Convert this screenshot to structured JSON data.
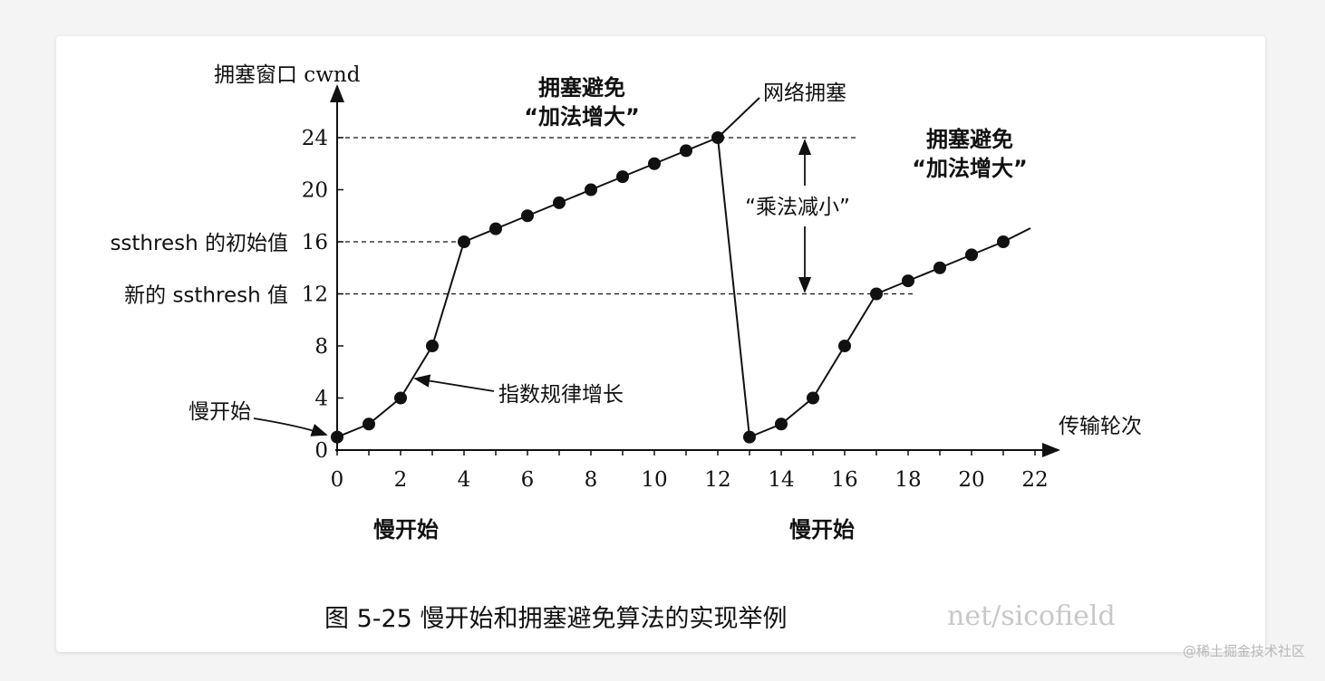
{
  "chart_data": {
    "type": "line",
    "title": "",
    "caption": "图 5-25    慢开始和拥塞避免算法的实现举例",
    "caption_watermark": "net/sicofield",
    "xlabel": "传输轮次",
    "ylabel": "拥塞窗口 cwnd",
    "xlim": [
      0,
      22
    ],
    "ylim": [
      0,
      24
    ],
    "x_ticks": [
      "0",
      "2",
      "4",
      "6",
      "8",
      "10",
      "12",
      "14",
      "16",
      "18",
      "20",
      "22"
    ],
    "y_ticks": [
      "0",
      "4",
      "8",
      "12",
      "16",
      "20",
      "24"
    ],
    "grid": false,
    "segments": [
      {
        "x": [
          0,
          1,
          2,
          3,
          4,
          5,
          6,
          7,
          8,
          9,
          10,
          11,
          12
        ],
        "y": [
          1,
          2,
          4,
          8,
          16,
          17,
          18,
          19,
          20,
          21,
          22,
          23,
          24
        ]
      },
      {
        "x": [
          13,
          14,
          15,
          16,
          17,
          18,
          19,
          20,
          21
        ],
        "y": [
          1,
          2,
          4,
          8,
          12,
          13,
          14,
          15,
          16
        ]
      }
    ],
    "threshold_lines": [
      {
        "y": 24
      },
      {
        "y": 16,
        "label": "ssthresh 的初始值"
      },
      {
        "y": 12,
        "label": "新的 ssthresh 值"
      }
    ],
    "annotations": {
      "slow_start_left": "慢开始",
      "exponential": "指数规律增长",
      "ca1_line1": "拥塞避免",
      "ca1_line2": "“加法增大”",
      "congestion": "网络拥塞",
      "ca2_line1": "拥塞避免",
      "ca2_line2": "“加法增大”",
      "multiplicative": "“乘法减小”",
      "slow_start_bottom1": "慢开始",
      "slow_start_bottom2": "慢开始"
    },
    "line_color": "#111111"
  },
  "site_watermark": "@稀土掘金技术社区"
}
